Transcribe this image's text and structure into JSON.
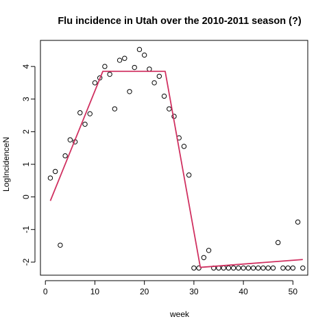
{
  "chart_data": {
    "type": "scatter",
    "title": "Flu incidence in Utah over the 2010-2011 season (?)",
    "xlabel": "week",
    "ylabel": "LogIncidenceN",
    "xlim": [
      -1,
      53
    ],
    "ylim": [
      -2.4,
      4.8
    ],
    "xticks": [
      0,
      10,
      20,
      30,
      40,
      50
    ],
    "yticks": [
      -2,
      -1,
      0,
      1,
      2,
      3,
      4
    ],
    "grid": false,
    "legend": "none",
    "series": [
      {
        "kind": "points",
        "marker": "open-circle",
        "color": "#000000",
        "x": [
          1,
          2,
          3,
          4,
          5,
          6,
          7,
          8,
          9,
          10,
          11,
          12,
          13,
          14,
          15,
          16,
          17,
          18,
          19,
          20,
          21,
          22,
          23,
          24,
          25,
          26,
          27,
          28,
          29,
          30,
          31,
          32,
          33,
          34,
          35,
          36,
          37,
          38,
          39,
          40,
          41,
          42,
          43,
          44,
          45,
          46,
          47,
          48,
          49,
          50,
          51,
          52
        ],
        "y": [
          0.58,
          0.78,
          -1.48,
          1.26,
          1.75,
          1.69,
          2.58,
          2.23,
          2.55,
          3.5,
          3.65,
          4.0,
          3.76,
          2.7,
          4.19,
          4.25,
          3.23,
          3.97,
          4.52,
          4.35,
          3.92,
          3.5,
          3.7,
          3.09,
          2.7,
          2.47,
          1.81,
          1.55,
          0.67,
          -2.18,
          -2.18,
          -1.86,
          -1.64,
          -2.18,
          -2.18,
          -2.18,
          -2.18,
          -2.18,
          -2.18,
          -2.18,
          -2.18,
          -2.18,
          -2.18,
          -2.18,
          -2.18,
          -2.18,
          -1.4,
          -2.18,
          -2.18,
          -2.18,
          -0.77,
          -2.18
        ]
      },
      {
        "kind": "line",
        "color": "#d03060",
        "x": [
          1,
          11.6,
          24.2,
          31.3,
          52
        ],
        "y": [
          -0.12,
          3.85,
          3.85,
          -2.16,
          -1.92
        ]
      }
    ]
  }
}
